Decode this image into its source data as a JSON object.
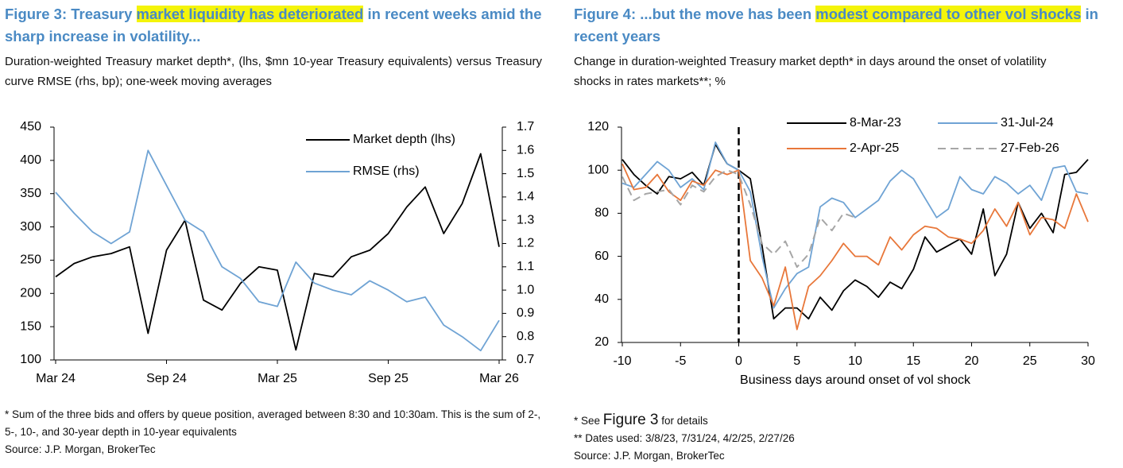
{
  "chart_data": [
    {
      "type": "line",
      "title": [
        "Figure 3: Treasury",
        "market liquidity has deteriorated",
        "in recent weeks amid the sharp increase in volatility..."
      ],
      "subtitle": "Duration-weighted Treasury market depth*, (lhs, $mn 10-year Treasury equivalents) versus Treasury curve RMSE (rhs, bp); one-week moving averages",
      "x": [
        "2024-03",
        "2024-04",
        "2024-05",
        "2024-06",
        "2024-07",
        "2024-08",
        "2024-09",
        "2024-10",
        "2024-11",
        "2024-12",
        "2025-01",
        "2025-02",
        "2025-03",
        "2025-04",
        "2025-05",
        "2025-06",
        "2025-07",
        "2025-08",
        "2025-09",
        "2025-10",
        "2025-11",
        "2025-12",
        "2026-01",
        "2026-02",
        "2026-03"
      ],
      "xticks": [
        {
          "value": "2024-03",
          "label": "Mar 24"
        },
        {
          "value": "2024-09",
          "label": "Sep 24"
        },
        {
          "value": "2025-03",
          "label": "Mar 25"
        },
        {
          "value": "2025-09",
          "label": "Sep 25"
        },
        {
          "value": "2026-03",
          "label": "Mar 26"
        }
      ],
      "ylim": [
        100,
        450
      ],
      "yticks": [
        100,
        150,
        200,
        250,
        300,
        350,
        400,
        450
      ],
      "y2lim": [
        0.7,
        1.7
      ],
      "y2ticks": [
        0.7,
        0.8,
        0.9,
        {
          "value": 1,
          "label": "1.0"
        },
        1.1,
        1.2,
        1.3,
        1.4,
        1.5,
        1.6,
        1.7
      ],
      "legend": "top-right",
      "series": [
        {
          "name": "Market depth (lhs)",
          "color": "#000000",
          "values": [
            225,
            245,
            255,
            260,
            270,
            140,
            265,
            310,
            190,
            175,
            215,
            240,
            235,
            115,
            230,
            225,
            255,
            265,
            290,
            330,
            360,
            290,
            335,
            410,
            270
          ]
        },
        {
          "name": "RMSE (rhs)",
          "color": "#6fa3d4",
          "axis": "y2",
          "values": [
            1.42,
            1.33,
            1.25,
            1.2,
            1.25,
            1.6,
            1.45,
            1.3,
            1.25,
            1.1,
            1.05,
            0.95,
            0.93,
            1.12,
            1.03,
            1.0,
            0.98,
            1.04,
            1.0,
            0.95,
            0.97,
            0.85,
            0.8,
            0.74,
            0.87
          ]
        }
      ],
      "footnotes": [
        "* Sum of the three bids and offers by queue position, averaged between 8:30 and 10:30am. This is the sum of 2-, 5-, 10-, and 30-year depth in 10-year equivalents",
        "Source: J.P. Morgan, BrokerTec"
      ]
    },
    {
      "type": "line",
      "title": [
        "Figure 4: ...but the move has been",
        "modest compared to other vol shocks",
        "in recent years"
      ],
      "subtitle": "Change in duration-weighted Treasury market depth* in days around the onset of volatility shocks in rates markets**; %",
      "x_label": "Business days around onset of vol shock",
      "x": [
        -10,
        -9,
        -8,
        -7,
        -6,
        -5,
        -4,
        -3,
        -2,
        -1,
        0,
        1,
        2,
        3,
        4,
        5,
        6,
        7,
        8,
        9,
        10,
        11,
        12,
        13,
        14,
        15,
        16,
        17,
        18,
        19,
        20,
        21,
        22,
        23,
        24,
        25,
        26,
        27,
        28,
        29,
        30
      ],
      "xlim": [
        -10,
        30
      ],
      "xticks": [
        -10,
        -5,
        0,
        5,
        10,
        15,
        20,
        25,
        30
      ],
      "ylim": [
        20,
        120
      ],
      "yticks": [
        20,
        40,
        60,
        80,
        100,
        120
      ],
      "legend": "top",
      "series": [
        {
          "name": "8-Mar-23",
          "color": "#000000",
          "values": [
            105,
            98,
            93,
            89,
            97,
            96,
            99,
            93,
            112,
            103,
            100,
            96,
            65,
            31,
            36,
            36,
            31,
            41,
            35,
            44,
            49,
            46,
            41,
            48,
            45,
            54,
            69,
            62,
            65,
            68,
            61,
            82,
            51,
            61,
            85,
            73,
            80,
            71,
            98,
            99,
            105
          ]
        },
        {
          "name": "31-Jul-24",
          "color": "#6fa3d4",
          "values": [
            94,
            92,
            98,
            104,
            100,
            92,
            96,
            91,
            113,
            103,
            100,
            90,
            60,
            36,
            45,
            52,
            55,
            83,
            87,
            85,
            78,
            82,
            86,
            95,
            100,
            96,
            87,
            78,
            82,
            97,
            91,
            89,
            97,
            94,
            89,
            93,
            86,
            101,
            102,
            90,
            89
          ]
        },
        {
          "name": "2-Apr-25",
          "color": "#e8773a",
          "values": [
            103,
            91,
            92,
            98,
            90,
            86,
            95,
            93,
            100,
            98,
            100,
            58,
            50,
            37,
            55,
            26,
            46,
            51,
            58,
            66,
            60,
            60,
            56,
            69,
            63,
            70,
            74,
            73,
            69,
            68,
            66,
            72,
            82,
            74,
            85,
            70,
            78,
            77,
            73,
            89,
            76
          ]
        },
        {
          "name": "27-Feb-26",
          "color": "#a6a6a6",
          "dash": true,
          "values": [
            97,
            86,
            89,
            90,
            91,
            84,
            93,
            90,
            97,
            100,
            98,
            84,
            66,
            61,
            67,
            55,
            61,
            78,
            72,
            80,
            78,
            null,
            null,
            null,
            null,
            null,
            null,
            null,
            null,
            null,
            null,
            null,
            null,
            null,
            null,
            null,
            null,
            null,
            null,
            null,
            null
          ]
        }
      ],
      "footnotes": [
        [
          "* See",
          "Figure 3",
          "for details"
        ],
        "** Dates used: 3/8/23, 7/31/24, 4/2/25, 2/27/26",
        "Source: J.P. Morgan, BrokerTec"
      ]
    }
  ]
}
